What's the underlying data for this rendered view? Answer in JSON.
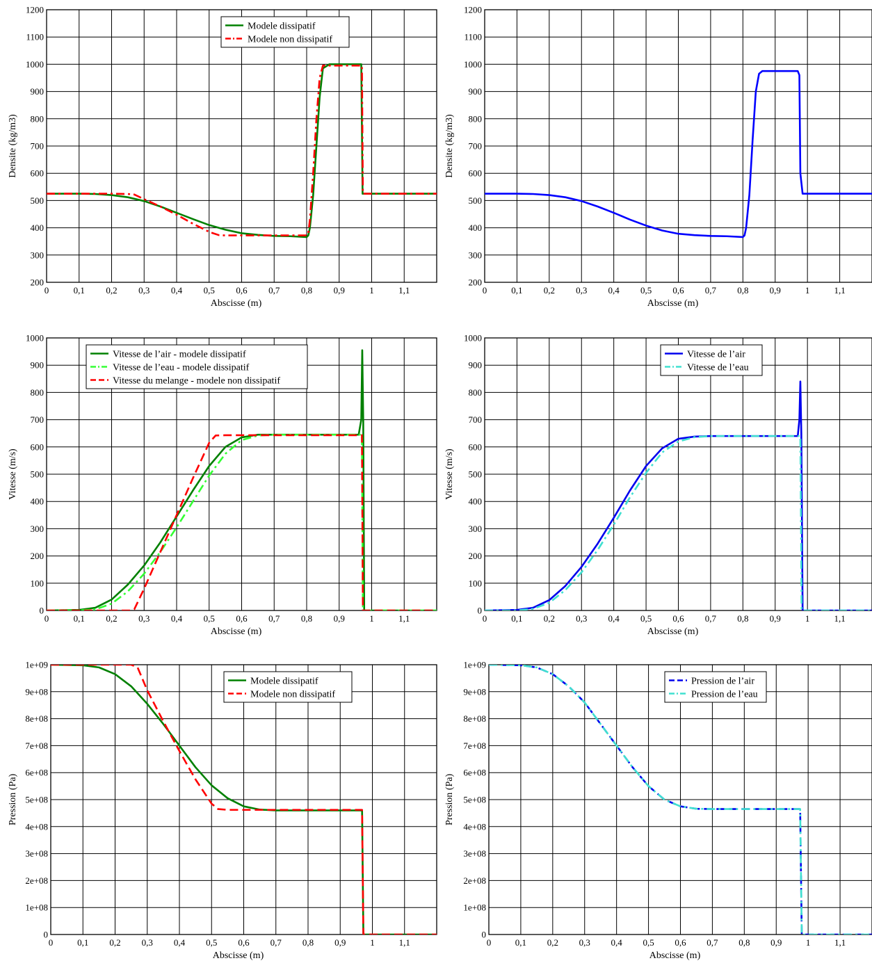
{
  "chart_data": [
    {
      "type": "line",
      "xlabel": "Abscisse (m)",
      "ylabel": "Densite (kg/m3)",
      "xlim": [
        0,
        1.2
      ],
      "ylim": [
        200,
        1200
      ],
      "xticks": [
        "0",
        "0,1",
        "0,2",
        "0,3",
        "0,4",
        "0,5",
        "0,6",
        "0,7",
        "0,8",
        "0,9",
        "1",
        "1,1"
      ],
      "yticks": [
        "200",
        "300",
        "400",
        "500",
        "600",
        "700",
        "800",
        "900",
        "1000",
        "1100",
        "1200"
      ],
      "grid": true,
      "legend_position": "top-center",
      "series": [
        {
          "name": "Modele dissipatif",
          "color": "#008000",
          "dash": "solid",
          "x": [
            0,
            0.1,
            0.15,
            0.2,
            0.25,
            0.3,
            0.35,
            0.4,
            0.45,
            0.5,
            0.55,
            0.6,
            0.65,
            0.7,
            0.75,
            0.8,
            0.805,
            0.81,
            0.82,
            0.83,
            0.84,
            0.85,
            0.87,
            0.9,
            0.95,
            0.968,
            0.972,
            0.98,
            1.05,
            1.2
          ],
          "y": [
            525,
            525,
            524,
            520,
            512,
            498,
            478,
            455,
            432,
            410,
            393,
            380,
            374,
            370,
            369,
            366,
            372,
            400,
            520,
            700,
            880,
            985,
            1000,
            1000,
            1000,
            1000,
            525,
            525,
            525,
            525
          ]
        },
        {
          "name": "Modele non dissipatif",
          "color": "#ff0000",
          "dash": "dashdot",
          "x": [
            0,
            0.1,
            0.2,
            0.25,
            0.27,
            0.3,
            0.35,
            0.4,
            0.45,
            0.5,
            0.53,
            0.55,
            0.6,
            0.7,
            0.8,
            0.805,
            0.81,
            0.82,
            0.83,
            0.84,
            0.85,
            0.9,
            0.97,
            0.973,
            1.0,
            1.2
          ],
          "y": [
            525,
            525,
            525,
            524,
            522,
            505,
            478,
            448,
            415,
            385,
            373,
            372,
            372,
            372,
            372,
            380,
            430,
            600,
            800,
            950,
            995,
            995,
            995,
            525,
            525,
            525
          ]
        }
      ]
    },
    {
      "type": "line",
      "xlabel": "Abscisse (m)",
      "ylabel": "Densite (kg/m3)",
      "xlim": [
        0,
        1.2
      ],
      "ylim": [
        200,
        1200
      ],
      "xticks": [
        "0",
        "0,1",
        "0,2",
        "0,3",
        "0,4",
        "0,5",
        "0,6",
        "0,7",
        "0,8",
        "0,9",
        "1",
        "1,1"
      ],
      "yticks": [
        "200",
        "300",
        "400",
        "500",
        "600",
        "700",
        "800",
        "900",
        "1000",
        "1100",
        "1200"
      ],
      "grid": true,
      "series": [
        {
          "color": "#0000ff",
          "dash": "solid",
          "x": [
            0,
            0.1,
            0.15,
            0.2,
            0.25,
            0.3,
            0.35,
            0.4,
            0.45,
            0.5,
            0.55,
            0.6,
            0.65,
            0.7,
            0.75,
            0.8,
            0.805,
            0.81,
            0.82,
            0.83,
            0.84,
            0.85,
            0.86,
            0.88,
            0.92,
            0.97,
            0.975,
            0.978,
            0.985,
            1.05,
            1.2
          ],
          "y": [
            525,
            525,
            524,
            520,
            512,
            498,
            478,
            455,
            430,
            408,
            390,
            378,
            373,
            370,
            369,
            366,
            372,
            400,
            520,
            720,
            900,
            965,
            975,
            975,
            975,
            975,
            960,
            600,
            525,
            525,
            525
          ]
        }
      ]
    },
    {
      "type": "line",
      "xlabel": "Abscisse (m)",
      "ylabel": "Vitesse (m/s)",
      "xlim": [
        0,
        1.2
      ],
      "ylim": [
        0,
        1000
      ],
      "xticks": [
        "0",
        "0,1",
        "0,2",
        "0,3",
        "0,4",
        "0,5",
        "0,6",
        "0,7",
        "0,8",
        "0,9",
        "1",
        "1,1"
      ],
      "yticks": [
        "0",
        "100",
        "200",
        "300",
        "400",
        "500",
        "600",
        "700",
        "800",
        "900",
        "1000"
      ],
      "grid": true,
      "legend_position": "top-left",
      "series": [
        {
          "name": "Vitesse de l’air - modele dissipatif",
          "color": "#008000",
          "dash": "solid",
          "x": [
            0,
            0.1,
            0.15,
            0.2,
            0.25,
            0.3,
            0.35,
            0.4,
            0.45,
            0.5,
            0.55,
            0.6,
            0.65,
            0.7,
            0.8,
            0.9,
            0.96,
            0.968,
            0.971,
            0.974,
            0.977,
            1.0,
            1.2
          ],
          "y": [
            0,
            2,
            10,
            40,
            95,
            165,
            250,
            345,
            440,
            530,
            600,
            635,
            645,
            645,
            645,
            645,
            645,
            700,
            955,
            700,
            0,
            0,
            0
          ]
        },
        {
          "name": "Vitesse de l’eau - modele dissipatif",
          "color": "#33ff33",
          "dash": "dashdot",
          "x": [
            0,
            0.1,
            0.15,
            0.2,
            0.25,
            0.3,
            0.35,
            0.4,
            0.45,
            0.5,
            0.55,
            0.6,
            0.65,
            0.7,
            0.8,
            0.9,
            0.97,
            0.973,
            1.0,
            1.2
          ],
          "y": [
            0,
            0,
            4,
            25,
            70,
            135,
            215,
            305,
            400,
            495,
            575,
            625,
            642,
            645,
            645,
            645,
            645,
            0,
            0,
            0
          ]
        },
        {
          "name": "Vitesse du melange - modele non dissipatif",
          "color": "#ff0000",
          "dash": "dashed",
          "x": [
            0,
            0.26,
            0.27,
            0.3,
            0.35,
            0.4,
            0.45,
            0.5,
            0.52,
            0.55,
            0.7,
            0.9,
            0.97,
            0.973,
            1.0,
            1.2
          ],
          "y": [
            0,
            0,
            5,
            80,
            215,
            350,
            485,
            615,
            642,
            643,
            643,
            643,
            643,
            0,
            0,
            0
          ]
        }
      ]
    },
    {
      "type": "line",
      "xlabel": "Abscisse (m)",
      "ylabel": "Vitesse (m/s)",
      "xlim": [
        0,
        1.2
      ],
      "ylim": [
        0,
        1000
      ],
      "xticks": [
        "0",
        "0,1",
        "0,2",
        "0,3",
        "0,4",
        "0,5",
        "0,6",
        "0,7",
        "0,8",
        "0,9",
        "1",
        "1,1"
      ],
      "yticks": [
        "0",
        "100",
        "200",
        "300",
        "400",
        "500",
        "600",
        "700",
        "800",
        "900",
        "1000"
      ],
      "grid": true,
      "legend_position": "top-center",
      "series": [
        {
          "name": "Vitesse de l’air",
          "color": "#0000ee",
          "dash": "solid",
          "x": [
            0,
            0.1,
            0.15,
            0.2,
            0.25,
            0.3,
            0.35,
            0.4,
            0.45,
            0.5,
            0.55,
            0.6,
            0.65,
            0.7,
            0.8,
            0.9,
            0.97,
            0.975,
            0.978,
            0.981,
            0.985,
            1.0,
            1.2
          ],
          "y": [
            0,
            2,
            10,
            38,
            90,
            160,
            245,
            340,
            440,
            530,
            595,
            630,
            638,
            640,
            640,
            640,
            640,
            700,
            840,
            650,
            0,
            0,
            0
          ]
        },
        {
          "name": "Vitesse de l’eau",
          "color": "#40e0d0",
          "dash": "dashdot",
          "x": [
            0,
            0.1,
            0.15,
            0.2,
            0.25,
            0.3,
            0.35,
            0.4,
            0.45,
            0.5,
            0.55,
            0.6,
            0.65,
            0.7,
            0.8,
            0.9,
            0.978,
            0.982,
            1.0,
            1.2
          ],
          "y": [
            0,
            0,
            6,
            28,
            75,
            140,
            222,
            315,
            415,
            505,
            580,
            620,
            636,
            640,
            640,
            640,
            640,
            0,
            0,
            0
          ]
        }
      ]
    },
    {
      "type": "line",
      "xlabel": "Abscisse (m)",
      "ylabel": "Pression (Pa)",
      "xlim": [
        0,
        1.2
      ],
      "ylim": [
        0,
        1000000000
      ],
      "xticks": [
        "0",
        "0,1",
        "0,2",
        "0,3",
        "0,4",
        "0,5",
        "0,6",
        "0,7",
        "0,8",
        "0,9",
        "1",
        "1,1"
      ],
      "yticks": [
        "0",
        "1e+08",
        "2e+08",
        "3e+08",
        "4e+08",
        "5e+08",
        "6e+08",
        "7e+08",
        "8e+08",
        "9e+08",
        "1e+09"
      ],
      "grid": true,
      "legend_position": "top-center",
      "series": [
        {
          "name": "Modele dissipatif",
          "color": "#008000",
          "dash": "solid",
          "x": [
            0,
            0.1,
            0.15,
            0.2,
            0.25,
            0.3,
            0.35,
            0.4,
            0.45,
            0.5,
            0.55,
            0.6,
            0.65,
            0.7,
            0.8,
            0.9,
            0.968,
            0.972,
            1.0,
            1.2
          ],
          "y": [
            1000000000,
            998000000,
            990000000,
            965000000,
            920000000,
            855000000,
            780000000,
            700000000,
            620000000,
            553000000,
            505000000,
            475000000,
            463000000,
            460000000,
            460000000,
            460000000,
            460000000,
            0,
            0,
            0
          ]
        },
        {
          "name": "Modele non dissipatif",
          "color": "#ff0000",
          "dash": "dashed",
          "x": [
            0,
            0.25,
            0.27,
            0.3,
            0.35,
            0.4,
            0.45,
            0.5,
            0.52,
            0.55,
            0.7,
            0.9,
            0.968,
            0.972,
            1.0,
            1.2
          ],
          "y": [
            1000000000,
            1000000000,
            990000000,
            905000000,
            790000000,
            680000000,
            575000000,
            485000000,
            465000000,
            462000000,
            462000000,
            462000000,
            462000000,
            0,
            0,
            0
          ]
        }
      ]
    },
    {
      "type": "line",
      "xlabel": "Abscisse (m)",
      "ylabel": "Pression (Pa)",
      "xlim": [
        0,
        1.2
      ],
      "ylim": [
        0,
        1000000000
      ],
      "xticks": [
        "0",
        "0,1",
        "0,2",
        "0,3",
        "0,4",
        "0,5",
        "0,6",
        "0,7",
        "0,8",
        "0,9",
        "1",
        "1,1"
      ],
      "yticks": [
        "0",
        "1e+08",
        "2e+08",
        "3e+08",
        "4e+08",
        "5e+08",
        "6e+08",
        "7e+08",
        "8e+08",
        "9e+08",
        "1e+09"
      ],
      "grid": true,
      "legend_position": "top-center",
      "series": [
        {
          "name": "Pression de l’air",
          "color": "#0000ee",
          "dash": "dashed",
          "x": [
            0,
            0.1,
            0.15,
            0.2,
            0.25,
            0.3,
            0.35,
            0.4,
            0.45,
            0.5,
            0.55,
            0.6,
            0.65,
            0.7,
            0.8,
            0.9,
            0.975,
            0.98,
            1.0,
            1.2
          ],
          "y": [
            1000000000,
            998000000,
            990000000,
            965000000,
            920000000,
            860000000,
            780000000,
            700000000,
            620000000,
            550000000,
            500000000,
            475000000,
            466000000,
            465000000,
            465000000,
            465000000,
            465000000,
            0,
            0,
            0
          ]
        },
        {
          "name": "Pression de l’eau",
          "color": "#40e0d0",
          "dash": "dashdot",
          "x": [
            0,
            0.1,
            0.15,
            0.2,
            0.25,
            0.3,
            0.35,
            0.4,
            0.45,
            0.5,
            0.55,
            0.6,
            0.65,
            0.7,
            0.8,
            0.9,
            0.975,
            0.98,
            1.0,
            1.2
          ],
          "y": [
            1000000000,
            998000000,
            990000000,
            965000000,
            920000000,
            860000000,
            780000000,
            700000000,
            620000000,
            550000000,
            500000000,
            475000000,
            466000000,
            465000000,
            465000000,
            465000000,
            465000000,
            0,
            0,
            0
          ]
        }
      ]
    }
  ]
}
